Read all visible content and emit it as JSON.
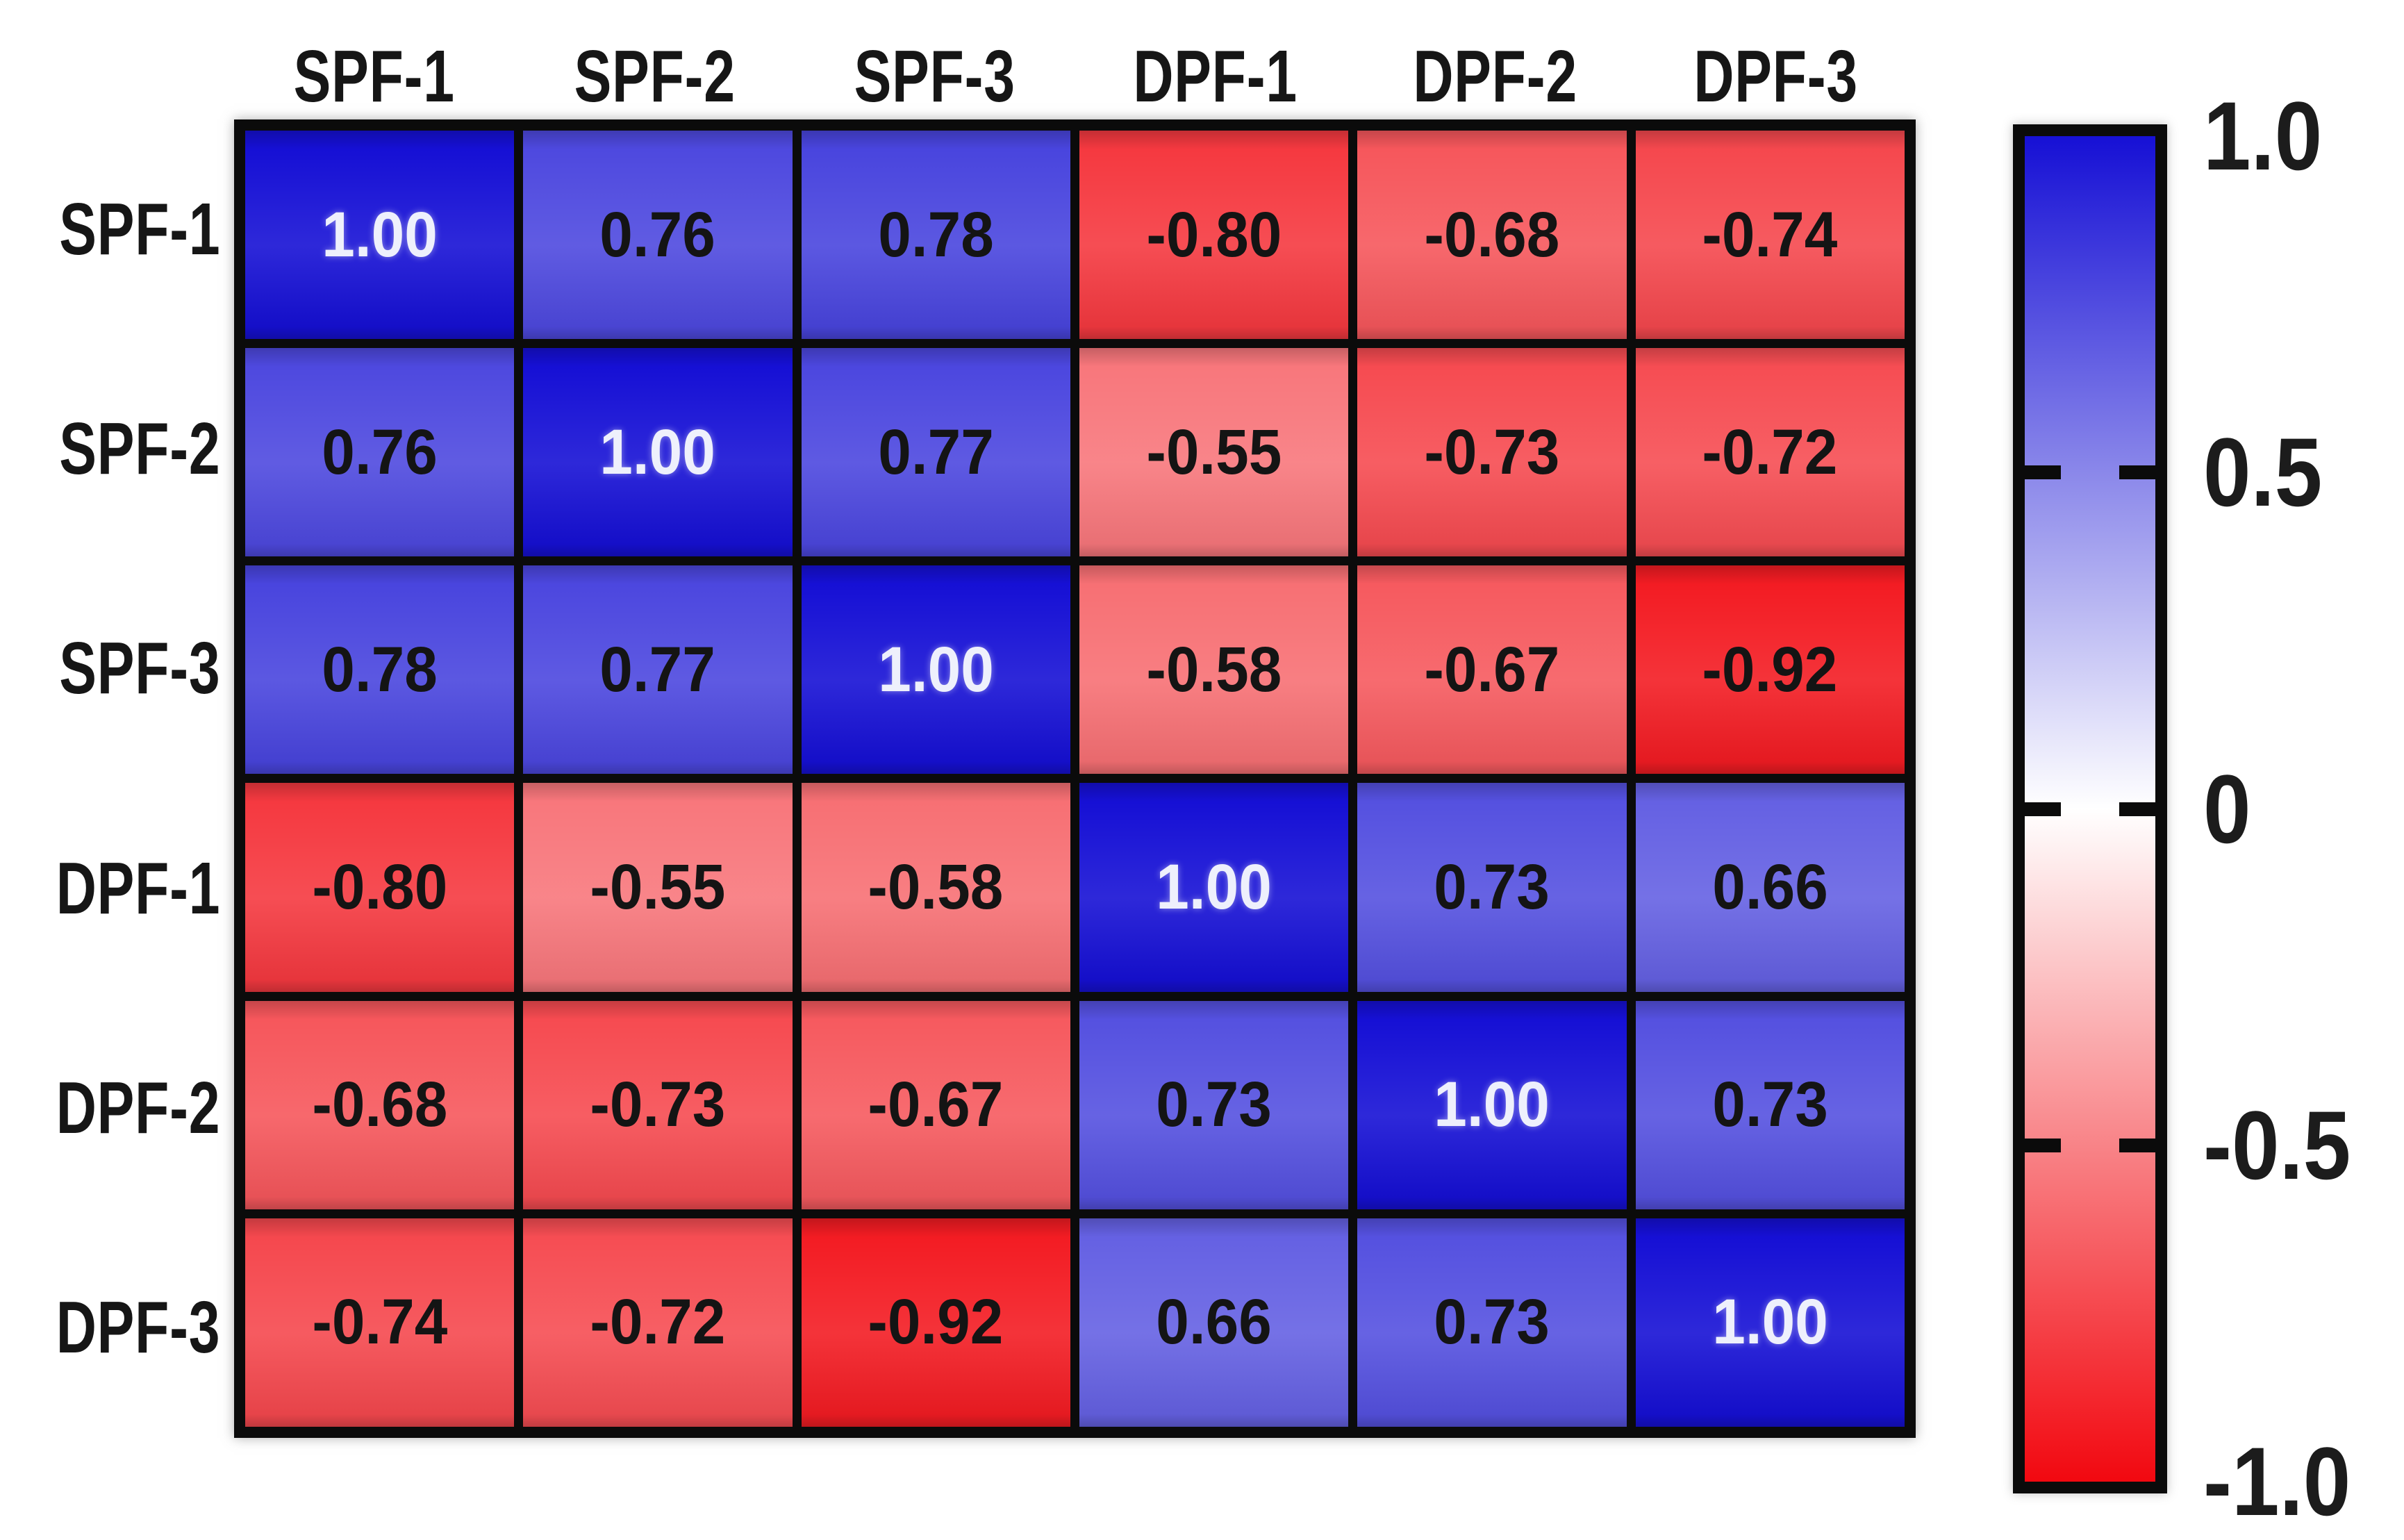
{
  "chart_data": {
    "type": "heatmap",
    "title": "",
    "categories": [
      "SPF-1",
      "SPF-2",
      "SPF-3",
      "DPF-1",
      "DPF-2",
      "DPF-3"
    ],
    "rows": [
      "SPF-1",
      "SPF-2",
      "SPF-3",
      "DPF-1",
      "DPF-2",
      "DPF-3"
    ],
    "matrix": [
      [
        1.0,
        0.76,
        0.78,
        -0.8,
        -0.68,
        -0.74
      ],
      [
        0.76,
        1.0,
        0.77,
        -0.55,
        -0.73,
        -0.72
      ],
      [
        0.78,
        0.77,
        1.0,
        -0.58,
        -0.67,
        -0.92
      ],
      [
        -0.8,
        -0.55,
        -0.58,
        1.0,
        0.73,
        0.66
      ],
      [
        -0.68,
        -0.73,
        -0.67,
        0.73,
        1.0,
        0.73
      ],
      [
        -0.74,
        -0.72,
        -0.92,
        0.66,
        0.73,
        1.0
      ]
    ],
    "value_decimals": 2,
    "range": [
      -1,
      1
    ],
    "colormap": {
      "name": "blue-white-red",
      "positive_end": "#1610d5",
      "center": "#ffffff",
      "negative_end": "#f20810"
    },
    "cell_text_dark": "#141414",
    "cell_text_light": "#eef0fc",
    "grid_line_color": "#0b0b0b",
    "colorbar": {
      "orientation": "vertical",
      "tick_labels": [
        "1.0",
        "0.5",
        "0",
        "-0.5",
        "-1.0"
      ],
      "tick_values": [
        1.0,
        0.5,
        0,
        -0.5,
        -1.0
      ],
      "marked_ticks": [
        0.5,
        0,
        -0.5
      ]
    },
    "legend_position": "right",
    "grid": "on"
  }
}
